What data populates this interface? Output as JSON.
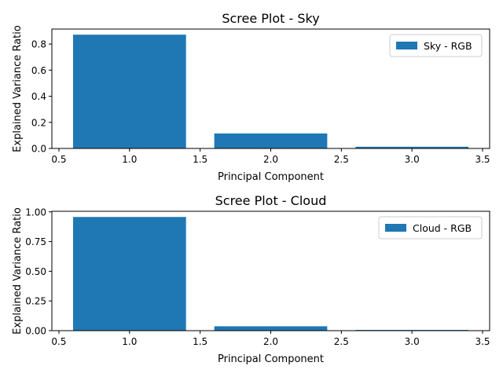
{
  "chart_data": [
    {
      "type": "bar",
      "title": "Scree Plot - Sky",
      "xlabel": "Principal Component",
      "ylabel": "Explained Variance Ratio",
      "x": [
        1,
        2,
        3
      ],
      "series": [
        {
          "name": "Sky - RGB",
          "values": [
            0.872,
            0.115,
            0.013
          ],
          "color": "#1f77b4"
        }
      ],
      "xlim": [
        0.45,
        3.55
      ],
      "ylim": [
        0,
        0.915
      ],
      "xticks": [
        0.5,
        1.0,
        1.5,
        2.0,
        2.5,
        3.0,
        3.5
      ],
      "xtick_labels": [
        "0.5",
        "1.0",
        "1.5",
        "2.0",
        "2.5",
        "3.0",
        "3.5"
      ],
      "yticks": [
        0.0,
        0.2,
        0.4,
        0.6,
        0.8
      ],
      "ytick_labels": [
        "0.0",
        "0.2",
        "0.4",
        "0.6",
        "0.8"
      ],
      "bar_width": 0.8,
      "grid": false,
      "legend_position": "top-right"
    },
    {
      "type": "bar",
      "title": "Scree Plot - Cloud",
      "xlabel": "Principal Component",
      "ylabel": "Explained Variance Ratio",
      "x": [
        1,
        2,
        3
      ],
      "series": [
        {
          "name": "Cloud - RGB",
          "values": [
            0.957,
            0.037,
            0.006
          ],
          "color": "#1f77b4"
        }
      ],
      "xlim": [
        0.45,
        3.55
      ],
      "ylim": [
        0,
        1.005
      ],
      "xticks": [
        0.5,
        1.0,
        1.5,
        2.0,
        2.5,
        3.0,
        3.5
      ],
      "xtick_labels": [
        "0.5",
        "1.0",
        "1.5",
        "2.0",
        "2.5",
        "3.0",
        "3.5"
      ],
      "yticks": [
        0.0,
        0.25,
        0.5,
        0.75,
        1.0
      ],
      "ytick_labels": [
        "0.00",
        "0.25",
        "0.50",
        "0.75",
        "1.00"
      ],
      "bar_width": 0.8,
      "grid": false,
      "legend_position": "top-right"
    }
  ]
}
